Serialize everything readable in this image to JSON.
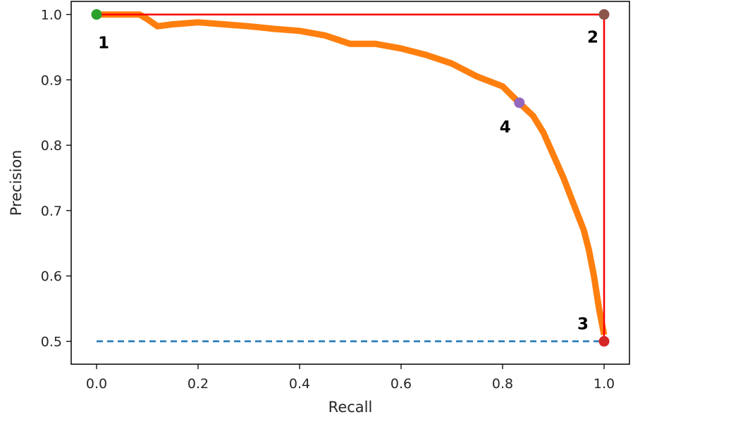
{
  "chart_data": {
    "type": "line",
    "title": "",
    "xlabel": "Recall",
    "ylabel": "Precision",
    "xlim": [
      -0.05,
      1.05
    ],
    "ylim": [
      0.465,
      1.02
    ],
    "grid": false,
    "x_ticks": [
      "0.0",
      "0.2",
      "0.4",
      "0.6",
      "0.8",
      "1.0"
    ],
    "x_tick_values": [
      0,
      0.2,
      0.4,
      0.6,
      0.8,
      1.0
    ],
    "y_ticks": [
      "0.5",
      "0.6",
      "0.7",
      "0.8",
      "0.9",
      "1.0"
    ],
    "y_tick_values": [
      0.5,
      0.6,
      0.7,
      0.8,
      0.9,
      1.0
    ],
    "series": [
      {
        "color": "#ff7f0e",
        "style": "solid-thick",
        "x": [
          0.0,
          0.05,
          0.085,
          0.1,
          0.12,
          0.15,
          0.2,
          0.25,
          0.3,
          0.35,
          0.4,
          0.45,
          0.5,
          0.55,
          0.6,
          0.65,
          0.7,
          0.75,
          0.8,
          0.83,
          0.86,
          0.88,
          0.9,
          0.92,
          0.94,
          0.96,
          0.97,
          0.98,
          0.99,
          1.0
        ],
        "y": [
          1.0,
          1.0,
          1.0,
          0.993,
          0.982,
          0.985,
          0.988,
          0.985,
          0.982,
          0.978,
          0.975,
          0.968,
          0.955,
          0.955,
          0.948,
          0.938,
          0.925,
          0.905,
          0.89,
          0.867,
          0.845,
          0.82,
          0.785,
          0.75,
          0.71,
          0.67,
          0.64,
          0.6,
          0.55,
          0.51
        ]
      },
      {
        "color": "#ff0000",
        "style": "solid",
        "x": [
          0.0,
          1.0,
          1.0
        ],
        "y": [
          1.0,
          1.0,
          0.5
        ]
      },
      {
        "color": "#1f77b4",
        "style": "dashed",
        "x": [
          0.0,
          1.0
        ],
        "y": [
          0.5,
          0.5
        ]
      }
    ],
    "points": [
      {
        "label": "1",
        "x": 0.0,
        "y": 1.0,
        "color": "#2ca02c"
      },
      {
        "label": "2",
        "x": 1.0,
        "y": 1.0,
        "color": "#8c564b"
      },
      {
        "label": "3",
        "x": 1.0,
        "y": 0.5,
        "color": "#d62728"
      },
      {
        "label": "4",
        "x": 0.833,
        "y": 0.865,
        "color": "#9467bd"
      }
    ]
  }
}
